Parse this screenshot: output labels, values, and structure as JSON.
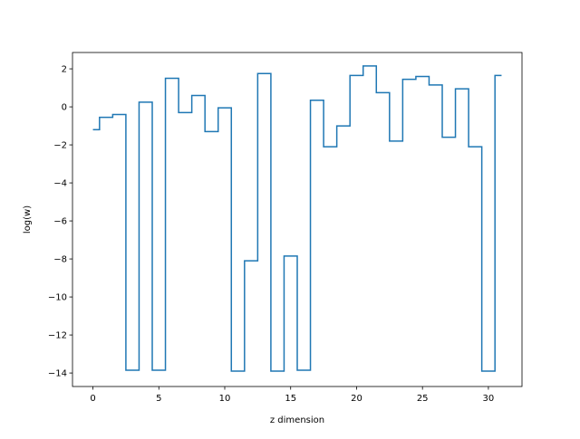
{
  "chart_data": {
    "type": "line",
    "drawstyle": "steps-mid",
    "xlabel": "z dimension",
    "ylabel": "log(w)",
    "xlim": [
      -1.55,
      32.55
    ],
    "ylim": [
      -14.71,
      2.86
    ],
    "xticks": [
      0,
      5,
      10,
      15,
      20,
      25,
      30
    ],
    "yticks": [
      -14,
      -12,
      -10,
      -8,
      -6,
      -4,
      -2,
      0,
      2
    ],
    "grid": false,
    "legend": "none",
    "series": [
      {
        "color": "#1f77b4",
        "x": [
          0,
          1,
          2,
          3,
          4,
          5,
          6,
          7,
          8,
          9,
          10,
          11,
          12,
          13,
          14,
          15,
          16,
          17,
          18,
          19,
          20,
          21,
          22,
          23,
          24,
          25,
          26,
          27,
          28,
          29,
          30,
          31
        ],
        "values": [
          -1.2,
          -0.55,
          -0.4,
          -13.85,
          0.25,
          -13.85,
          1.5,
          -0.3,
          0.6,
          -1.3,
          -0.05,
          -13.9,
          -8.1,
          1.75,
          -13.9,
          -7.85,
          -13.85,
          0.35,
          -2.1,
          -1.0,
          1.65,
          2.15,
          0.75,
          -1.8,
          1.45,
          1.6,
          1.15,
          -1.6,
          0.95,
          -2.1,
          -13.9,
          1.65
        ]
      }
    ]
  }
}
